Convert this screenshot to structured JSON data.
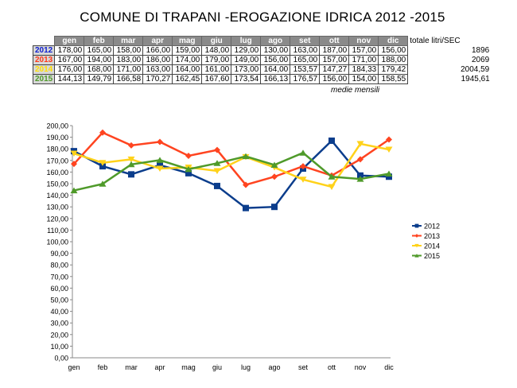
{
  "title": "COMUNE DI TRAPANI -EROGAZIONE IDRICA 2012 -2015",
  "table": {
    "months": [
      "gen",
      "feb",
      "mar",
      "apr",
      "mag",
      "giu",
      "lug",
      "ago",
      "set",
      "ott",
      "nov",
      "dic"
    ],
    "total_header": "totale litri/SEC",
    "rows": [
      {
        "year": "2012",
        "color": "#1020d0",
        "values": [
          "178,00",
          "165,00",
          "158,00",
          "166,00",
          "159,00",
          "148,00",
          "129,00",
          "130,00",
          "163,00",
          "187,00",
          "157,00",
          "156,00"
        ],
        "total": "1896"
      },
      {
        "year": "2013",
        "color": "#ff3a1a",
        "values": [
          "167,00",
          "194,00",
          "183,00",
          "186,00",
          "174,00",
          "179,00",
          "149,00",
          "156,00",
          "165,00",
          "157,00",
          "171,00",
          "188,00"
        ],
        "total": "2069"
      },
      {
        "year": "2014",
        "color": "#ffe000",
        "values": [
          "176,00",
          "168,00",
          "171,00",
          "163,00",
          "164,00",
          "161,00",
          "173,00",
          "164,00",
          "153,57",
          "147,27",
          "184,33",
          "179,42"
        ],
        "total": "2004,59"
      },
      {
        "year": "2015",
        "color": "#4f9a2a",
        "values": [
          "144,13",
          "149,79",
          "166,58",
          "170,27",
          "162,45",
          "167,60",
          "173,54",
          "166,13",
          "176,57",
          "156,00",
          "154,00",
          "158,55"
        ],
        "total": "1945,61"
      }
    ],
    "note": "medie mensili"
  },
  "chart_data": {
    "type": "line",
    "categories": [
      "gen",
      "feb",
      "mar",
      "apr",
      "mag",
      "giu",
      "lug",
      "ago",
      "set",
      "ott",
      "nov",
      "dic"
    ],
    "ylim": [
      0,
      200
    ],
    "ytick_step": 10,
    "legend": "right",
    "series": [
      {
        "name": "2012",
        "color": "#0b3d8c",
        "marker": "square",
        "values": [
          178,
          165,
          158,
          166,
          159,
          148,
          129,
          130,
          163,
          187,
          157,
          156
        ]
      },
      {
        "name": "2013",
        "color": "#ff4420",
        "marker": "diamond",
        "values": [
          167,
          194,
          183,
          186,
          174,
          179,
          149,
          156,
          165,
          157,
          171,
          188
        ]
      },
      {
        "name": "2014",
        "color": "#ffd21a",
        "marker": "triangle-down",
        "values": [
          176,
          168,
          171,
          163,
          164,
          161,
          173,
          164,
          153.57,
          147.27,
          184.33,
          179.42
        ]
      },
      {
        "name": "2015",
        "color": "#4f9a2a",
        "marker": "triangle",
        "values": [
          144.13,
          149.79,
          166.58,
          170.27,
          162.45,
          167.6,
          173.54,
          166.13,
          176.57,
          156,
          154,
          158.55
        ]
      }
    ]
  }
}
